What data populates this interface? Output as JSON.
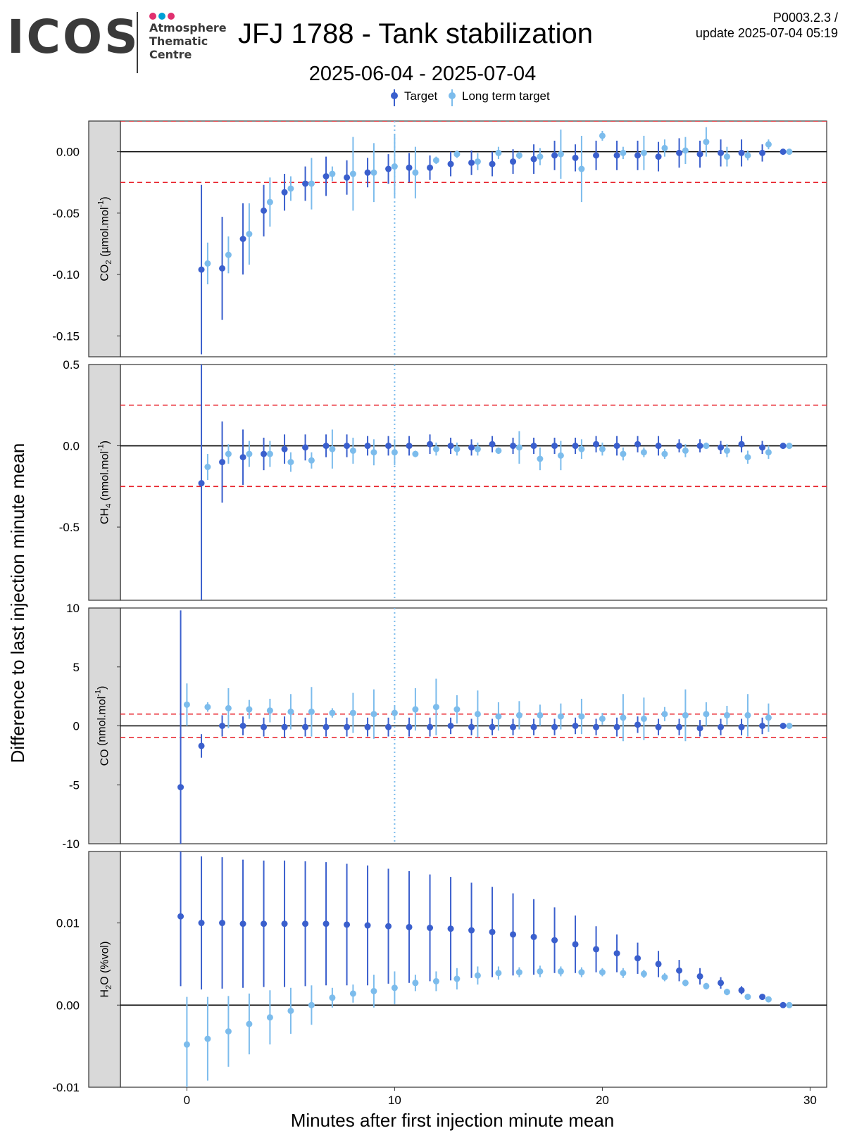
{
  "header": {
    "logo_text": "ICOS",
    "logo_lines": [
      "Atmosphere",
      "Thematic",
      "Centre"
    ],
    "logo_dot_colors": [
      "#e0306f",
      "#00a0d6",
      "#e0306f"
    ],
    "title": "JFJ 1788 - Tank stabilization",
    "subtitle": "2025-06-04 - 2025-07-04",
    "product_code": "P0003.2.3 /",
    "update_label": "update  2025-07-04 05:19"
  },
  "chart_data": {
    "type": "scatter",
    "error_bars": true,
    "xlabel": "Minutes after first injection minute mean",
    "ylabel": "Difference to last injection minute mean",
    "xlim": [
      -3.2,
      30.8
    ],
    "x_ticks": [
      0,
      10,
      20,
      30
    ],
    "x_tick_labels": [
      "0",
      "10",
      "20",
      "30"
    ],
    "vertical_reference_line_x": 10,
    "legend": {
      "position": "top",
      "entries": [
        {
          "label": "Target",
          "color": "#3a5fcd"
        },
        {
          "label": "Long term target",
          "color": "#7cbcec"
        }
      ]
    },
    "panels": [
      {
        "strip_label_main": "CO",
        "strip_label_sub": "2",
        "strip_label_rest": " (µmol.mol",
        "strip_label_sup": "-1",
        "strip_label_end": ")",
        "ylim": [
          -0.167,
          0.025
        ],
        "yticks": [
          0.0,
          -0.05,
          -0.1,
          -0.15
        ],
        "ytick_labels": [
          "0.00",
          "-0.05",
          "-0.10",
          "-0.15"
        ],
        "threshold": 0.025,
        "series": [
          {
            "name": "Target",
            "x": [
              1,
              2,
              3,
              4,
              5,
              6,
              7,
              8,
              9,
              10,
              11,
              12,
              13,
              14,
              15,
              16,
              17,
              18,
              19,
              20,
              21,
              22,
              23,
              24,
              25,
              26,
              27,
              28,
              29
            ],
            "y": [
              -0.096,
              -0.095,
              -0.071,
              -0.048,
              -0.033,
              -0.026,
              -0.02,
              -0.021,
              -0.017,
              -0.014,
              -0.013,
              -0.013,
              -0.01,
              -0.009,
              -0.01,
              -0.008,
              -0.006,
              -0.003,
              -0.005,
              -0.003,
              -0.003,
              -0.003,
              -0.004,
              -0.001,
              -0.002,
              -0.001,
              -0.001,
              -0.001,
              0.0
            ],
            "err": [
              0.069,
              0.042,
              0.029,
              0.021,
              0.015,
              0.014,
              0.016,
              0.014,
              0.012,
              0.012,
              0.012,
              0.01,
              0.01,
              0.01,
              0.01,
              0.01,
              0.012,
              0.012,
              0.011,
              0.012,
              0.012,
              0.012,
              0.012,
              0.012,
              0.011,
              0.011,
              0.011,
              0.007,
              0.0
            ]
          },
          {
            "name": "Long term target",
            "x": [
              1,
              2,
              3,
              4,
              5,
              6,
              7,
              8,
              9,
              10,
              11,
              12,
              13,
              14,
              15,
              16,
              17,
              18,
              19,
              20,
              21,
              22,
              23,
              24,
              25,
              26,
              27,
              28,
              29
            ],
            "y": [
              -0.091,
              -0.084,
              -0.067,
              -0.041,
              -0.03,
              -0.026,
              -0.018,
              -0.018,
              -0.017,
              -0.012,
              -0.017,
              -0.007,
              -0.002,
              -0.008,
              -0.001,
              -0.003,
              -0.004,
              -0.002,
              -0.014,
              0.013,
              -0.001,
              -0.001,
              0.003,
              0.001,
              0.008,
              -0.004,
              -0.003,
              0.006,
              0.0
            ],
            "err": [
              0.017,
              0.015,
              0.025,
              0.02,
              0.01,
              0.021,
              0.006,
              0.03,
              0.024,
              0.026,
              0.021,
              0.003,
              0.003,
              0.007,
              0.005,
              0.003,
              0.007,
              0.02,
              0.027,
              0.004,
              0.005,
              0.014,
              0.007,
              0.011,
              0.012,
              0.008,
              0.004,
              0.004,
              0.0
            ]
          }
        ]
      },
      {
        "strip_label_main": "CH",
        "strip_label_sub": "4",
        "strip_label_rest": " (nmol.mol",
        "strip_label_sup": "-1",
        "strip_label_end": ")",
        "ylim": [
          -0.95,
          0.5
        ],
        "yticks": [
          0.5,
          0.0,
          -0.5
        ],
        "ytick_labels": [
          "0.5",
          "0.0",
          "-0.5"
        ],
        "threshold": 0.25,
        "series": [
          {
            "name": "Target",
            "x": [
              1,
              2,
              3,
              4,
              5,
              6,
              7,
              8,
              9,
              10,
              11,
              12,
              13,
              14,
              15,
              16,
              17,
              18,
              19,
              20,
              21,
              22,
              23,
              24,
              25,
              26,
              27,
              28,
              29
            ],
            "y": [
              -0.23,
              -0.1,
              -0.07,
              -0.05,
              -0.02,
              -0.01,
              0.0,
              0.0,
              0.0,
              0.0,
              0.0,
              0.01,
              0.0,
              -0.01,
              0.01,
              0.0,
              0.0,
              0.0,
              0.0,
              0.01,
              0.0,
              0.01,
              0.0,
              0.0,
              0.0,
              -0.01,
              0.01,
              -0.01,
              0.0
            ],
            "err": [
              0.73,
              0.25,
              0.17,
              0.1,
              0.09,
              0.08,
              0.07,
              0.07,
              0.06,
              0.06,
              0.06,
              0.06,
              0.05,
              0.05,
              0.05,
              0.05,
              0.05,
              0.05,
              0.05,
              0.05,
              0.06,
              0.05,
              0.06,
              0.04,
              0.04,
              0.04,
              0.05,
              0.04,
              0.0
            ]
          },
          {
            "name": "Long term target",
            "x": [
              1,
              2,
              3,
              4,
              5,
              6,
              7,
              8,
              9,
              10,
              11,
              12,
              13,
              14,
              15,
              16,
              17,
              18,
              19,
              20,
              21,
              22,
              23,
              24,
              25,
              26,
              27,
              28,
              29
            ],
            "y": [
              -0.13,
              -0.05,
              -0.05,
              -0.05,
              -0.1,
              -0.09,
              -0.02,
              -0.03,
              -0.04,
              -0.04,
              -0.05,
              -0.02,
              -0.02,
              -0.02,
              -0.03,
              -0.01,
              -0.08,
              -0.06,
              -0.02,
              -0.02,
              -0.05,
              -0.04,
              -0.05,
              -0.03,
              0.0,
              -0.03,
              -0.07,
              -0.04,
              0.0
            ],
            "err": [
              0.08,
              0.06,
              0.08,
              0.08,
              0.06,
              0.05,
              0.12,
              0.08,
              0.08,
              0.08,
              0.02,
              0.04,
              0.04,
              0.04,
              0.02,
              0.1,
              0.07,
              0.09,
              0.06,
              0.04,
              0.04,
              0.03,
              0.03,
              0.04,
              0.02,
              0.04,
              0.04,
              0.04,
              0.0
            ]
          }
        ]
      },
      {
        "strip_label_main": "CO",
        "strip_label_sub": "",
        "strip_label_rest": " (nmol.mol",
        "strip_label_sup": "-1",
        "strip_label_end": ")",
        "ylim": [
          -10,
          10
        ],
        "yticks": [
          10,
          5,
          0,
          -5,
          -10
        ],
        "ytick_labels": [
          "10",
          "5",
          "0",
          "-5",
          "-10"
        ],
        "threshold": 1,
        "series": [
          {
            "name": "Target",
            "x": [
              0,
              1,
              2,
              3,
              4,
              5,
              6,
              7,
              8,
              9,
              10,
              11,
              12,
              13,
              14,
              15,
              16,
              17,
              18,
              19,
              20,
              21,
              22,
              23,
              24,
              25,
              26,
              27,
              28,
              29
            ],
            "y": [
              -5.2,
              -1.7,
              0.0,
              0.0,
              -0.1,
              -0.1,
              -0.1,
              -0.1,
              -0.1,
              -0.1,
              -0.1,
              -0.1,
              -0.1,
              0.0,
              -0.1,
              -0.1,
              -0.1,
              -0.1,
              -0.1,
              0.0,
              -0.1,
              -0.1,
              0.1,
              -0.1,
              -0.1,
              -0.2,
              -0.1,
              -0.1,
              0.0,
              0.0
            ],
            "err": [
              15.0,
              1.0,
              0.9,
              0.8,
              0.8,
              0.9,
              0.8,
              0.8,
              0.8,
              0.8,
              0.8,
              0.8,
              0.8,
              0.7,
              0.7,
              0.7,
              0.7,
              0.7,
              0.7,
              0.7,
              0.7,
              0.8,
              0.7,
              0.7,
              0.7,
              0.7,
              0.7,
              0.7,
              0.7,
              0.0
            ]
          },
          {
            "name": "Long term target",
            "x": [
              0,
              1,
              2,
              3,
              4,
              5,
              6,
              7,
              8,
              9,
              10,
              11,
              12,
              13,
              14,
              15,
              16,
              17,
              18,
              19,
              20,
              21,
              22,
              23,
              24,
              25,
              26,
              27,
              28,
              29
            ],
            "y": [
              1.8,
              1.6,
              1.5,
              1.4,
              1.3,
              1.2,
              1.2,
              1.1,
              1.1,
              1.0,
              1.1,
              1.4,
              1.6,
              1.4,
              1.0,
              0.8,
              0.9,
              0.9,
              0.8,
              0.8,
              0.6,
              0.7,
              0.6,
              1.0,
              0.9,
              1.0,
              0.9,
              0.9,
              0.7,
              0.0
            ],
            "err": [
              1.8,
              0.4,
              1.7,
              0.8,
              1.0,
              1.5,
              2.1,
              0.4,
              1.7,
              2.1,
              0.6,
              1.8,
              2.4,
              1.2,
              2.0,
              1.2,
              1.2,
              0.9,
              1.1,
              1.5,
              0.5,
              2.0,
              1.8,
              0.6,
              2.2,
              1.0,
              0.8,
              1.8,
              1.2,
              0.0
            ]
          }
        ]
      },
      {
        "strip_label_main": "H",
        "strip_label_sub": "2",
        "strip_label_rest": "O (%vol)",
        "strip_label_sup": "",
        "strip_label_end": "",
        "ylim": [
          -0.01,
          0.0187
        ],
        "yticks": [
          0.01,
          0.0,
          -0.01
        ],
        "ytick_labels": [
          "0.01",
          "0.00",
          "-0.01"
        ],
        "threshold": null,
        "series": [
          {
            "name": "Target",
            "x": [
              0,
              1,
              2,
              3,
              4,
              5,
              6,
              7,
              8,
              9,
              10,
              11,
              12,
              13,
              14,
              15,
              16,
              17,
              18,
              19,
              20,
              21,
              22,
              23,
              24,
              25,
              26,
              27,
              28,
              29
            ],
            "y": [
              0.0108,
              0.01,
              0.01,
              0.0099,
              0.0099,
              0.0099,
              0.0099,
              0.0099,
              0.0098,
              0.0097,
              0.0096,
              0.0095,
              0.0094,
              0.0093,
              0.0091,
              0.0089,
              0.0086,
              0.0083,
              0.0079,
              0.0074,
              0.0068,
              0.0063,
              0.0057,
              0.005,
              0.0042,
              0.0035,
              0.0027,
              0.0018,
              0.001,
              0.0
            ],
            "err": [
              0.0085,
              0.0081,
              0.008,
              0.0078,
              0.0077,
              0.0077,
              0.0076,
              0.0075,
              0.0074,
              0.0073,
              0.007,
              0.0068,
              0.0065,
              0.0063,
              0.0058,
              0.0055,
              0.005,
              0.0046,
              0.004,
              0.0035,
              0.0028,
              0.0023,
              0.0019,
              0.0016,
              0.0013,
              0.001,
              0.0007,
              0.0005,
              0.0003,
              0.0
            ]
          },
          {
            "name": "Long term target",
            "x": [
              0,
              1,
              2,
              3,
              4,
              5,
              6,
              7,
              8,
              9,
              10,
              11,
              12,
              13,
              14,
              15,
              16,
              17,
              18,
              19,
              20,
              21,
              22,
              23,
              24,
              25,
              26,
              27,
              28,
              29
            ],
            "y": [
              -0.0048,
              -0.0041,
              -0.0032,
              -0.0023,
              -0.0015,
              -0.0007,
              0.0,
              0.0009,
              0.0014,
              0.0017,
              0.0021,
              0.0027,
              0.0029,
              0.0032,
              0.0036,
              0.0039,
              0.004,
              0.0041,
              0.0041,
              0.004,
              0.004,
              0.0039,
              0.0038,
              0.0034,
              0.0027,
              0.0023,
              0.0016,
              0.001,
              0.0007,
              0.0
            ],
            "err": [
              0.0058,
              0.0051,
              0.0043,
              0.0037,
              0.0033,
              0.0028,
              0.0024,
              0.0012,
              0.0011,
              0.002,
              0.002,
              0.001,
              0.0012,
              0.0013,
              0.0011,
              0.0008,
              0.0006,
              0.0007,
              0.0006,
              0.0006,
              0.0005,
              0.0006,
              0.0005,
              0.0005,
              0.0004,
              0.0004,
              0.0004,
              0.0003,
              0.0003,
              0.0
            ]
          }
        ]
      }
    ]
  },
  "colors": {
    "target": "#3a5fcd",
    "long_term": "#7cbcec",
    "threshold": "#e8202a",
    "zero_line": "#000000",
    "strip": "#d9d9d9",
    "vline": "#7cbcec"
  }
}
